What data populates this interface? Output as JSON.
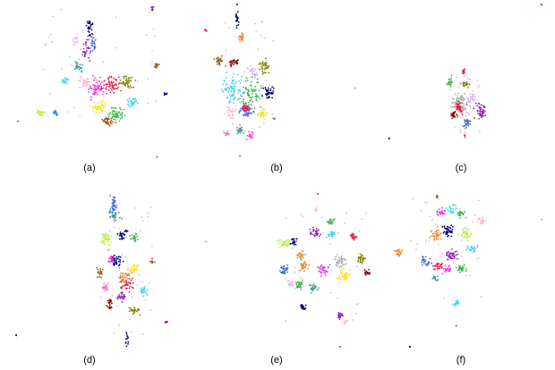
{
  "figure": {
    "panels": [
      {
        "label": "(a)"
      },
      {
        "label": "(b)"
      },
      {
        "label": "(c)"
      },
      {
        "label": "(d)"
      },
      {
        "label": "(e)"
      },
      {
        "label": "(f)"
      }
    ]
  },
  "palette": [
    "#e6194b",
    "#3cb44b",
    "#4363d8",
    "#f58231",
    "#911eb4",
    "#42d4f4",
    "#f032e6",
    "#bfef45",
    "#fabed4",
    "#469990",
    "#9a6324",
    "#800000",
    "#808000",
    "#000075",
    "#a9a9a9",
    "#ffe119",
    "#dcbeff",
    "#00a86b",
    "#1e90ff",
    "#ff69b4"
  ],
  "chart_data": [
    {
      "type": "scatter",
      "label": "(a)",
      "xlabel": "",
      "ylabel": "",
      "axes": "none",
      "grid": false,
      "legend": "none",
      "num_colors": 20
    },
    {
      "type": "scatter",
      "label": "(b)",
      "xlabel": "",
      "ylabel": "",
      "axes": "none",
      "grid": false,
      "legend": "none",
      "num_colors": 20
    },
    {
      "type": "scatter",
      "label": "(c)",
      "xlabel": "",
      "ylabel": "",
      "axes": "none",
      "grid": false,
      "legend": "none",
      "num_colors": 6
    },
    {
      "type": "scatter",
      "label": "(d)",
      "xlabel": "",
      "ylabel": "",
      "axes": "none",
      "grid": false,
      "legend": "none",
      "num_colors": 20
    },
    {
      "type": "scatter",
      "label": "(e)",
      "xlabel": "",
      "ylabel": "",
      "axes": "none",
      "grid": false,
      "legend": "none",
      "num_colors": 20
    },
    {
      "type": "scatter",
      "label": "(f)",
      "xlabel": "",
      "ylabel": "",
      "axes": "none",
      "grid": false,
      "legend": "none",
      "num_colors": 20
    }
  ]
}
